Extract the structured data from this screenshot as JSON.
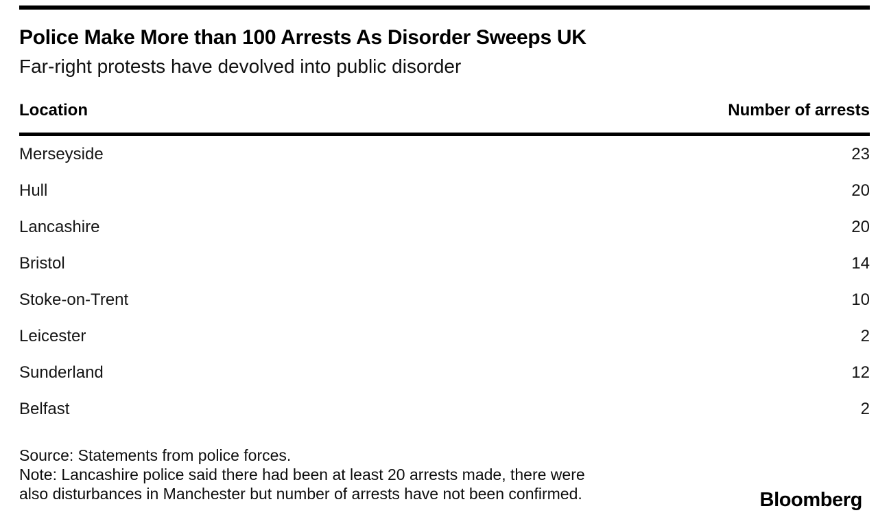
{
  "colors": {
    "background": "#ffffff",
    "text": "#151515",
    "accent": "#000000"
  },
  "header": {
    "title": "Police Make More than 100 Arrests As Disorder Sweeps UK",
    "subtitle": "Far-right protests have devolved into public disorder"
  },
  "table": {
    "columns": [
      "Location",
      "Number of arrests"
    ],
    "rows": [
      {
        "location": "Merseyside",
        "arrests": "23"
      },
      {
        "location": "Hull",
        "arrests": "20"
      },
      {
        "location": "Lancashire",
        "arrests": "20"
      },
      {
        "location": "Bristol",
        "arrests": "14"
      },
      {
        "location": "Stoke-on-Trent",
        "arrests": "10"
      },
      {
        "location": "Leicester",
        "arrests": "2"
      },
      {
        "location": "Sunderland",
        "arrests": "12"
      },
      {
        "location": "Belfast",
        "arrests": "2"
      }
    ]
  },
  "footer": {
    "source": "Source: Statements from police forces.",
    "note_lines": [
      "Note: Lancashire police said there had been at least 20 arrests made, there were",
      "also disturbances in Manchester but number of arrests have not been confirmed."
    ],
    "brand": "Bloomberg"
  },
  "chart_data": {
    "type": "table",
    "title": "Police Make More than 100 Arrests As Disorder Sweeps UK",
    "subtitle": "Far-right protests have devolved into public disorder",
    "columns": [
      "Location",
      "Number of arrests"
    ],
    "categories": [
      "Merseyside",
      "Hull",
      "Lancashire",
      "Bristol",
      "Stoke-on-Trent",
      "Leicester",
      "Sunderland",
      "Belfast"
    ],
    "values": [
      23,
      20,
      20,
      14,
      10,
      2,
      12,
      2
    ],
    "source": "Source: Statements from police forces.",
    "note": "Note: Lancashire police said there had been at least 20 arrests made, there were also disturbances in Manchester but number of arrests have not been confirmed.",
    "brand": "Bloomberg"
  }
}
